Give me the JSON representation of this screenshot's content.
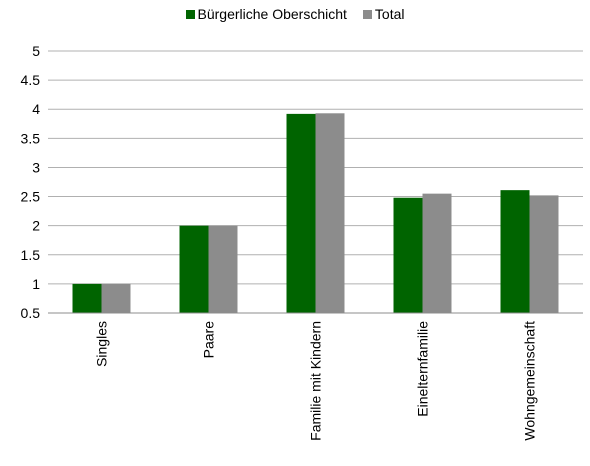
{
  "chart_data": {
    "type": "bar",
    "categories": [
      "Singles",
      "Paare",
      "Familie mit Kindern",
      "Einelternfamilie",
      "Wohngemeinschaft"
    ],
    "series": [
      {
        "name": "Bürgerliche Oberschicht",
        "values": [
          1.0,
          2.0,
          3.92,
          2.48,
          2.61
        ],
        "color": "#006400"
      },
      {
        "name": "Total",
        "values": [
          1.0,
          2.0,
          3.93,
          2.55,
          2.52
        ],
        "color": "#8c8c8c"
      }
    ],
    "ylim": [
      0.5,
      5
    ],
    "yticks": [
      "0.5",
      "1",
      "1.5",
      "2",
      "2.5",
      "3",
      "3.5",
      "4",
      "4.5",
      "5"
    ],
    "grid": true,
    "legend_position": "top-center"
  }
}
